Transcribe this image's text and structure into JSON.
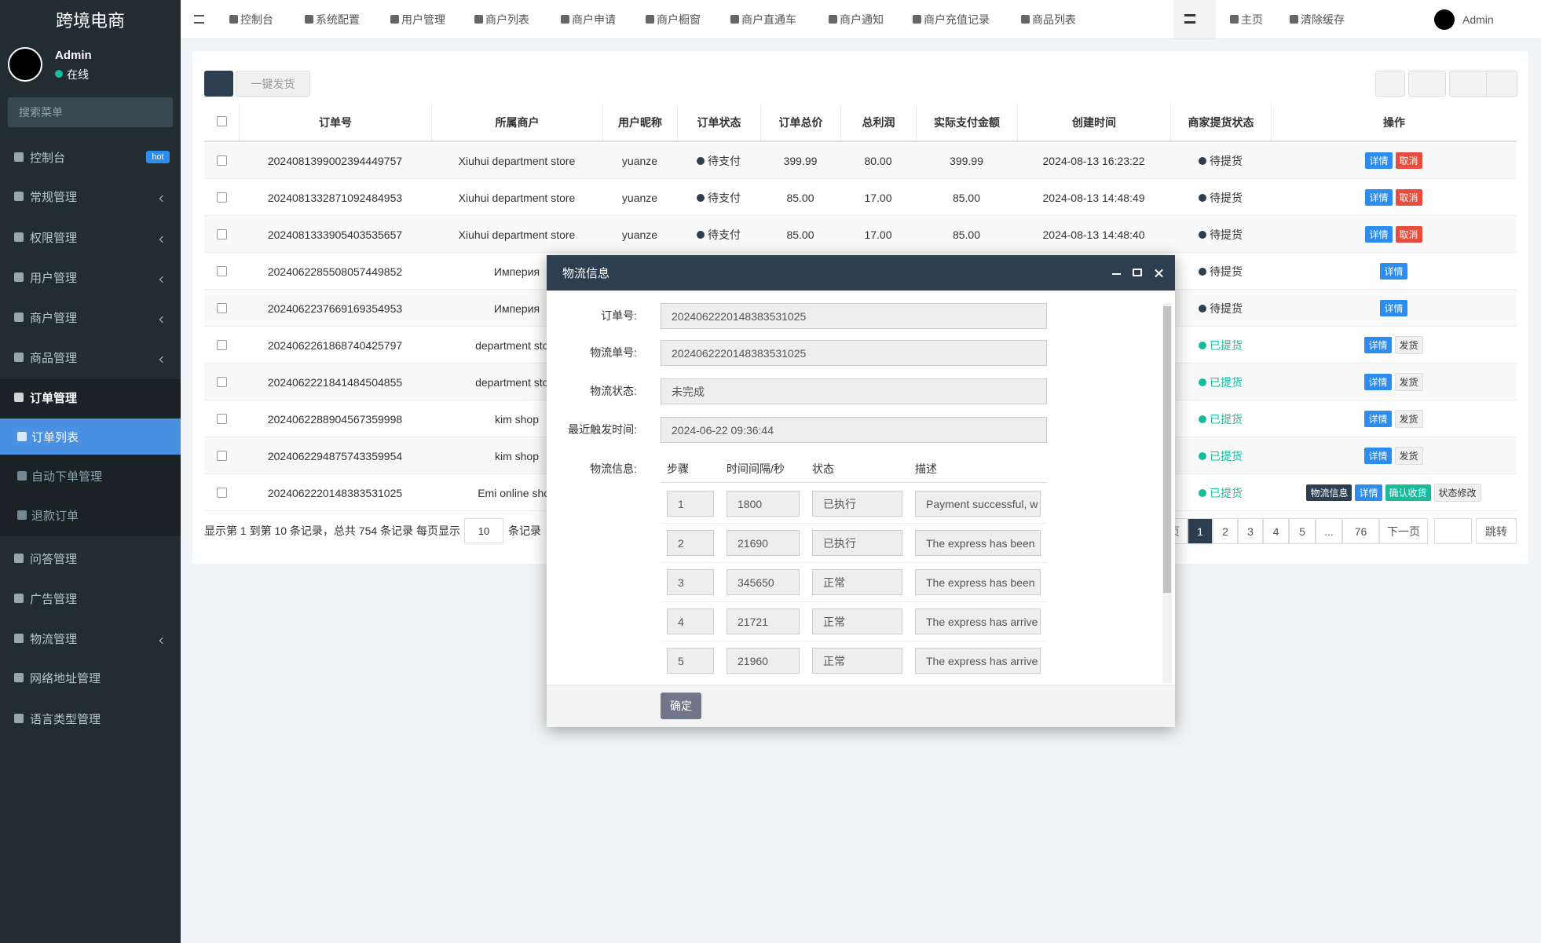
{
  "sidebar": {
    "logo": "跨境电商",
    "user": "Admin",
    "status": "在线",
    "search": "搜索菜单",
    "menu": [
      {
        "label": "控制台",
        "badge": "hot"
      },
      {
        "label": "常规管理"
      },
      {
        "label": "权限管理"
      },
      {
        "label": "用户管理"
      },
      {
        "label": "商户管理"
      },
      {
        "label": "商品管理"
      },
      {
        "label": "订单管理"
      },
      {
        "label": "订单列表"
      },
      {
        "label": "自动下单管理"
      },
      {
        "label": "退款订单"
      },
      {
        "label": "问答管理"
      },
      {
        "label": "广告管理"
      },
      {
        "label": "物流管理"
      },
      {
        "label": "网络地址管理"
      },
      {
        "label": "语言类型管理"
      }
    ]
  },
  "topnav": {
    "tabs": [
      "控制台",
      "系统配置",
      "用户管理",
      "商户列表",
      "商户申请",
      "商户橱窗",
      "商户直通车",
      "商户通知",
      "商户充值记录",
      "商品列表"
    ],
    "right": [
      "主页",
      "清除缓存"
    ],
    "user": "Admin"
  },
  "toolbar": {
    "ship": "一键发货"
  },
  "table": {
    "headers": [
      "订单号",
      "所属商户",
      "用户昵称",
      "订单状态",
      "订单总价",
      "总利润",
      "实际支付金额",
      "创建时间",
      "商家提货状态",
      "操作"
    ],
    "rows": [
      {
        "order": "2024081399002394449757",
        "merchant": "Xiuhui department store",
        "nick": "yuanze",
        "status": "待支付",
        "total": "399.99",
        "profit": "80.00",
        "paid": "399.99",
        "time": "2024-08-13 16:23:22",
        "pickup": "待提货",
        "actions": [
          "详情",
          "取消"
        ]
      },
      {
        "order": "2024081332871092484953",
        "merchant": "Xiuhui department store",
        "nick": "yuanze",
        "status": "待支付",
        "total": "85.00",
        "profit": "17.00",
        "paid": "85.00",
        "time": "2024-08-13 14:48:49",
        "pickup": "待提货",
        "actions": [
          "详情",
          "取消"
        ]
      },
      {
        "order": "2024081333905403535657",
        "merchant": "Xiuhui department store",
        "nick": "yuanze",
        "status": "待支付",
        "total": "85.00",
        "profit": "17.00",
        "paid": "85.00",
        "time": "2024-08-13 14:48:40",
        "pickup": "待提货",
        "actions": [
          "详情",
          "取消"
        ]
      },
      {
        "order": "2024062285508057449852",
        "merchant": "Империя",
        "pickup": "待提货",
        "actions": [
          "详情"
        ]
      },
      {
        "order": "2024062237669169354953",
        "merchant": "Империя",
        "pickup": "待提货",
        "actions": [
          "详情"
        ]
      },
      {
        "order": "2024062261868740425797",
        "merchant": "department store",
        "pickup": "已提货",
        "actions": [
          "详情",
          "发货"
        ]
      },
      {
        "order": "2024062221841484504855",
        "merchant": "department store",
        "pickup": "已提货",
        "actions": [
          "详情",
          "发货"
        ]
      },
      {
        "order": "2024062288904567359998",
        "merchant": "kim shop",
        "pickup": "已提货",
        "actions": [
          "详情",
          "发货"
        ]
      },
      {
        "order": "2024062294875743359954",
        "merchant": "kim shop",
        "pickup": "已提货",
        "actions": [
          "详情",
          "发货"
        ]
      },
      {
        "order": "2024062220148383531025",
        "merchant": "Emi online shop",
        "pickup": "已提货",
        "actions": [
          "物流信息",
          "详情",
          "确认收货",
          "状态修改"
        ]
      }
    ]
  },
  "pagination": {
    "summary": "显示第 1 到第 10 条记录，总共 754 条记录 每页显示",
    "page_size": "10",
    "suffix": "条记录",
    "prev": "上一页",
    "pages": [
      "1",
      "2",
      "3",
      "4",
      "5",
      "...",
      "76"
    ],
    "next": "下一页",
    "jump": "跳转"
  },
  "modal": {
    "title": "物流信息",
    "fields": [
      {
        "label": "订单号:",
        "value": "2024062220148383531025"
      },
      {
        "label": "物流单号:",
        "value": "2024062220148383531025"
      },
      {
        "label": "物流状态:",
        "value": "未完成"
      },
      {
        "label": "最近触发时间:",
        "value": "2024-06-22 09:36:44"
      }
    ],
    "logistics_label": "物流信息:",
    "columns": [
      "步骤",
      "时间间隔/秒",
      "状态",
      "描述"
    ],
    "steps": [
      [
        "1",
        "1800",
        "已执行",
        "Payment successful, w"
      ],
      [
        "2",
        "21690",
        "已执行",
        "The express has been"
      ],
      [
        "3",
        "345650",
        "正常",
        "The express has been"
      ],
      [
        "4",
        "21721",
        "正常",
        "The express has arrive"
      ],
      [
        "5",
        "21960",
        "正常",
        "The express has arrive"
      ]
    ],
    "confirm": "确定"
  }
}
